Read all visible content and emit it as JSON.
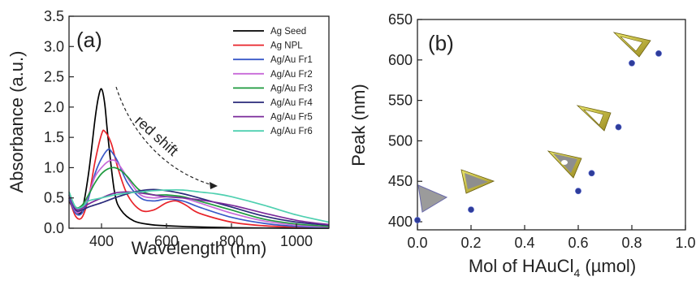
{
  "chart_data": [
    {
      "type": "line",
      "panel_label": "(a)",
      "xlabel": "Wavelength (nm)",
      "ylabel": "Absorbance (a.u.)",
      "xlim": [
        300,
        1100
      ],
      "ylim": [
        0,
        3.5
      ],
      "xticks": [
        400,
        600,
        800,
        1000
      ],
      "yticks": [
        0.0,
        0.5,
        1.0,
        1.5,
        2.0,
        2.5,
        3.0,
        3.5
      ],
      "ytick_labels": [
        "0.0",
        "0.5",
        "1.0",
        "1.5",
        "2.0",
        "2.5",
        "3.0",
        "3.5"
      ],
      "legend_position": "top-right",
      "annotation": "red shift",
      "series": [
        {
          "name": "Ag Seed",
          "color": "#000000",
          "x": [
            300,
            320,
            340,
            360,
            380,
            390,
            400,
            410,
            420,
            440,
            460,
            500,
            550,
            600,
            700,
            800,
            1000,
            1100
          ],
          "y": [
            0.45,
            0.28,
            0.3,
            0.9,
            1.8,
            2.15,
            2.3,
            2.05,
            1.5,
            0.6,
            0.3,
            0.12,
            0.06,
            0.04,
            0.02,
            0.01,
            0.0,
            0.0
          ]
        },
        {
          "name": "Ag NPL",
          "color": "#e8232a",
          "x": [
            300,
            320,
            340,
            360,
            380,
            400,
            410,
            430,
            450,
            480,
            520,
            560,
            600,
            630,
            660,
            700,
            800,
            900,
            1000,
            1100
          ],
          "y": [
            0.5,
            0.2,
            0.18,
            0.5,
            1.1,
            1.55,
            1.6,
            1.4,
            1.0,
            0.55,
            0.3,
            0.3,
            0.42,
            0.45,
            0.38,
            0.25,
            0.1,
            0.04,
            0.02,
            0.01
          ]
        },
        {
          "name": "Ag/Au Fr1",
          "color": "#3a59c8",
          "x": [
            300,
            320,
            340,
            360,
            380,
            400,
            420,
            430,
            450,
            480,
            520,
            560,
            600,
            650,
            700,
            800,
            900,
            1000,
            1100
          ],
          "y": [
            0.5,
            0.25,
            0.25,
            0.5,
            0.9,
            1.15,
            1.3,
            1.27,
            1.1,
            0.75,
            0.5,
            0.45,
            0.48,
            0.45,
            0.35,
            0.18,
            0.08,
            0.03,
            0.01
          ]
        },
        {
          "name": "Ag/Au Fr2",
          "color": "#c86ad8",
          "x": [
            300,
            320,
            340,
            360,
            380,
            400,
            420,
            440,
            460,
            490,
            520,
            560,
            600,
            650,
            700,
            800,
            900,
            1000,
            1100
          ],
          "y": [
            0.55,
            0.28,
            0.3,
            0.55,
            0.85,
            1.0,
            1.1,
            1.12,
            1.0,
            0.75,
            0.55,
            0.5,
            0.52,
            0.5,
            0.42,
            0.25,
            0.12,
            0.05,
            0.02
          ]
        },
        {
          "name": "Ag/Au Fr3",
          "color": "#1e9a3e",
          "x": [
            300,
            320,
            340,
            360,
            380,
            400,
            420,
            440,
            460,
            480,
            500,
            520,
            560,
            600,
            650,
            700,
            800,
            900,
            1000,
            1100
          ],
          "y": [
            0.6,
            0.35,
            0.38,
            0.55,
            0.75,
            0.9,
            0.98,
            1.0,
            0.95,
            0.85,
            0.72,
            0.62,
            0.55,
            0.55,
            0.52,
            0.45,
            0.3,
            0.15,
            0.07,
            0.03
          ]
        },
        {
          "name": "Ag/Au Fr4",
          "color": "#2a2a7a",
          "x": [
            300,
            320,
            340,
            360,
            400,
            440,
            480,
            520,
            560,
            600,
            650,
            700,
            800,
            900,
            1000,
            1100
          ],
          "y": [
            0.55,
            0.3,
            0.3,
            0.35,
            0.42,
            0.5,
            0.57,
            0.62,
            0.64,
            0.62,
            0.57,
            0.5,
            0.35,
            0.2,
            0.1,
            0.05
          ]
        },
        {
          "name": "Ag/Au Fr5",
          "color": "#7a2a9a",
          "x": [
            300,
            320,
            340,
            360,
            400,
            440,
            480,
            520,
            560,
            600,
            650,
            700,
            800,
            900,
            1000,
            1100
          ],
          "y": [
            0.55,
            0.32,
            0.33,
            0.4,
            0.5,
            0.58,
            0.6,
            0.58,
            0.55,
            0.52,
            0.5,
            0.47,
            0.38,
            0.25,
            0.13,
            0.06
          ]
        },
        {
          "name": "Ag/Au Fr6",
          "color": "#4fd0b0",
          "x": [
            300,
            320,
            340,
            360,
            400,
            440,
            480,
            520,
            560,
            600,
            650,
            700,
            750,
            800,
            900,
            1000,
            1100
          ],
          "y": [
            0.6,
            0.35,
            0.35,
            0.45,
            0.5,
            0.55,
            0.58,
            0.6,
            0.62,
            0.63,
            0.63,
            0.6,
            0.57,
            0.52,
            0.38,
            0.22,
            0.1
          ]
        }
      ]
    },
    {
      "type": "scatter",
      "panel_label": "(b)",
      "xlabel": "Mol of HAuCl",
      "xlabel_subscript": "4",
      "xlabel_unit": " (µmol)",
      "ylabel": "Peak (nm)",
      "xlim": [
        0.0,
        1.0
      ],
      "ylim": [
        390,
        650
      ],
      "xticks": [
        0.0,
        0.2,
        0.4,
        0.6,
        0.8,
        1.0
      ],
      "xtick_labels": [
        "0.0",
        "0.2",
        "0.4",
        "0.6",
        "0.8",
        "1.0"
      ],
      "yticks": [
        400,
        450,
        500,
        550,
        600,
        650
      ],
      "marker_color": "#2e3c9a",
      "x": [
        0.0,
        0.2,
        0.6,
        0.65,
        0.75,
        0.8,
        0.9
      ],
      "y": [
        402,
        415,
        438,
        460,
        517,
        596,
        608
      ]
    }
  ]
}
